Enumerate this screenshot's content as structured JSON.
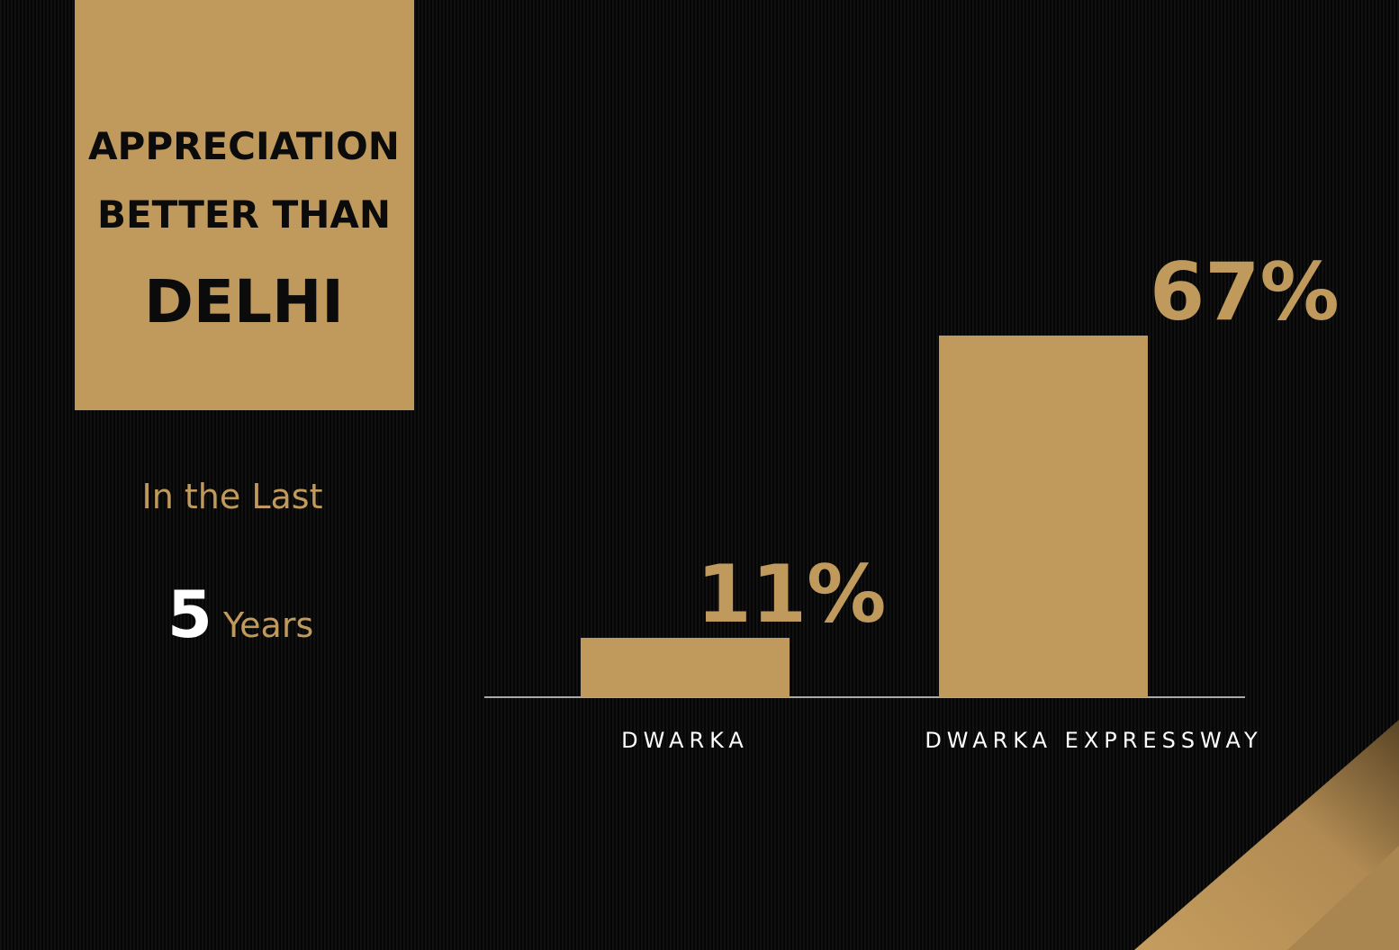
{
  "panel": {
    "title_lines": [
      "APPRECIATION",
      "BETTER THAN",
      "DELHI"
    ],
    "period": {
      "intro": "In the Last",
      "number": 5,
      "unit": "Years"
    }
  },
  "chart_data": {
    "type": "bar",
    "categories": [
      "DWARKA",
      "DWARKA EXPRESSWAY"
    ],
    "values": [
      11,
      67
    ],
    "value_labels": [
      "11%",
      "67%"
    ],
    "color": "#c09a5c"
  }
}
